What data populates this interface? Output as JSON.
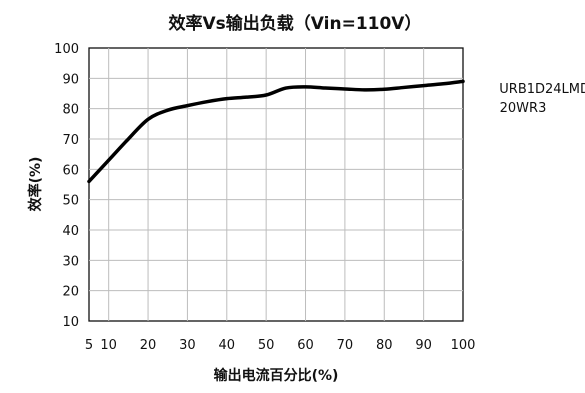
{
  "chart_data": {
    "type": "line",
    "title": "效率Vs输出负载（Vin=110V）",
    "xlabel": "输出电流百分比(%)",
    "ylabel": "效率(%)",
    "xlim": [
      5,
      100
    ],
    "ylim": [
      10,
      100
    ],
    "x_ticks": [
      5,
      10,
      20,
      30,
      40,
      50,
      60,
      70,
      80,
      90,
      100
    ],
    "y_ticks": [
      10,
      20,
      30,
      40,
      50,
      60,
      70,
      80,
      90,
      100
    ],
    "grid": true,
    "series": [
      {
        "name": "URB1D24LMD-20WR3",
        "label_lines": [
          "URB1D24LMD-",
          "20WR3"
        ],
        "color": "#000000",
        "x": [
          5,
          10,
          15,
          20,
          25,
          30,
          35,
          40,
          45,
          50,
          55,
          60,
          65,
          70,
          75,
          80,
          85,
          90,
          95,
          100
        ],
        "y": [
          56,
          63,
          70,
          76.5,
          79.5,
          81,
          82.3,
          83.3,
          83.8,
          84.5,
          86.8,
          87.2,
          86.8,
          86.5,
          86.2,
          86.4,
          87,
          87.6,
          88.2,
          89
        ]
      }
    ]
  }
}
